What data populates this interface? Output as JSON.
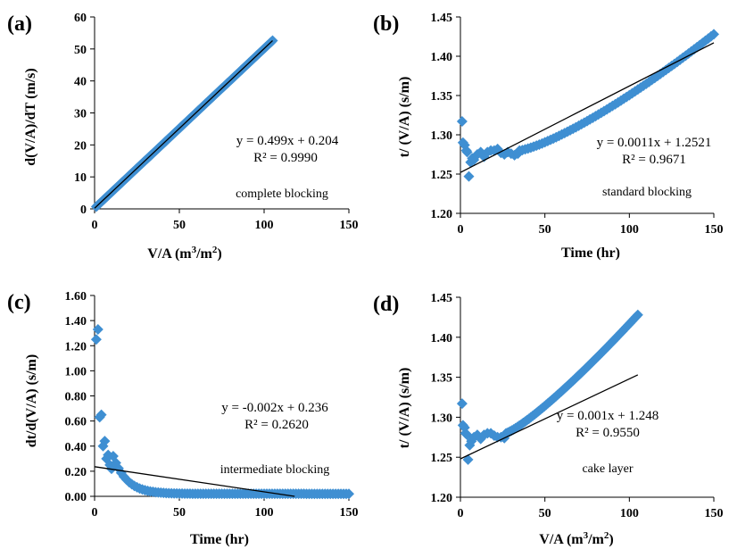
{
  "figure": {
    "panels": [
      {
        "letter": "(a)",
        "ylabel": "d(V/A)/dT (m/s)",
        "xlabel": "V/A (m³/m²)",
        "xlabel_main": "V/A (m",
        "xlabel_sup1": "3",
        "xlabel_mid": "/m",
        "xlabel_sup2": "2",
        "xlabel_end": ")",
        "equation": "y = 0.499x + 0.204",
        "r2": "R² = 0.9990",
        "note": "complete blocking",
        "xticks": [
          "0",
          "50",
          "100",
          "150"
        ],
        "yticks": [
          "0",
          "10",
          "20",
          "30",
          "40",
          "50",
          "60"
        ]
      },
      {
        "letter": "(b)",
        "ylabel": "t/ (V/A) (s/m)",
        "xlabel": "Time (hr)",
        "equation": "y = 0.0011x + 1.2521",
        "r2": "R² = 0.9671",
        "note": "standard blocking",
        "xticks": [
          "0",
          "50",
          "100",
          "150"
        ],
        "yticks": [
          "1.20",
          "1.25",
          "1.30",
          "1.35",
          "1.40",
          "1.45"
        ]
      },
      {
        "letter": "(c)",
        "ylabel": "dt/d(V/A) (s/m)",
        "xlabel": "Time (hr)",
        "equation": "y = -0.002x + 0.236",
        "r2": "R² = 0.2620",
        "note": "intermediate blocking",
        "xticks": [
          "0",
          "50",
          "100",
          "150"
        ],
        "yticks": [
          "0.00",
          "0.20",
          "0.40",
          "0.60",
          "0.80",
          "1.00",
          "1.20",
          "1.40",
          "1.60"
        ]
      },
      {
        "letter": "(d)",
        "ylabel": "t/ (V/A) (s/m)",
        "xlabel": "V/A (m³/m²)",
        "xlabel_main": "V/A (m",
        "xlabel_sup1": "3",
        "xlabel_mid": "/m",
        "xlabel_sup2": "2",
        "xlabel_end": ")",
        "equation": "y = 0.001x + 1.248",
        "r2": "R² = 0.9550",
        "note": "cake layer",
        "xticks": [
          "0",
          "50",
          "100",
          "150"
        ],
        "yticks": [
          "1.20",
          "1.25",
          "1.30",
          "1.35",
          "1.40",
          "1.45"
        ]
      }
    ]
  },
  "chart_data": [
    {
      "type": "scatter",
      "panel": "(a)",
      "xlabel": "V/A (m³/m²)",
      "ylabel": "d(V/A)/dT (m/s)",
      "xlim": [
        0,
        150
      ],
      "ylim": [
        0,
        60
      ],
      "marker_color": "#3F8FD2",
      "points": {
        "x_start": 1,
        "x_end": 105,
        "count": 150,
        "slope": 0.499,
        "intercept": 0.204
      },
      "trendline": {
        "slope": 0.499,
        "intercept": 0.204,
        "x_range": [
          0,
          105
        ],
        "r2": 0.999
      },
      "annotation": "complete blocking"
    },
    {
      "type": "scatter",
      "panel": "(b)",
      "xlabel": "Time (hr)",
      "ylabel": "t/ (V/A) (s/m)",
      "xlim": [
        0,
        150
      ],
      "ylim": [
        1.2,
        1.45
      ],
      "marker_color": "#3F8FD2",
      "points_explicit": [
        [
          1,
          1.317
        ],
        [
          1.5,
          1.29
        ],
        [
          2.5,
          1.287
        ],
        [
          3.5,
          1.28
        ],
        [
          4,
          1.278
        ],
        [
          5,
          1.247
        ],
        [
          6,
          1.265
        ],
        [
          7,
          1.27
        ],
        [
          8,
          1.268
        ],
        [
          10,
          1.275
        ],
        [
          12,
          1.278
        ],
        [
          14,
          1.272
        ],
        [
          16,
          1.278
        ],
        [
          18,
          1.28
        ],
        [
          20,
          1.28
        ],
        [
          22,
          1.282
        ],
        [
          24,
          1.277
        ],
        [
          26,
          1.275
        ],
        [
          28,
          1.278
        ],
        [
          30,
          1.276
        ],
        [
          32,
          1.274
        ],
        [
          34,
          1.276
        ]
      ],
      "points_curve": {
        "x_start": 35,
        "x_end": 150,
        "count": 70,
        "y_start": 1.28,
        "y_end": 1.428,
        "exponent": 1.3
      },
      "trendline": {
        "slope": 0.0011,
        "intercept": 1.2521,
        "x_range": [
          0,
          150
        ],
        "r2": 0.9671
      },
      "annotation": "standard blocking"
    },
    {
      "type": "scatter",
      "panel": "(c)",
      "xlabel": "Time (hr)",
      "ylabel": "dt/d(V/A) (s/m)",
      "xlim": [
        0,
        150
      ],
      "ylim": [
        0,
        1.6
      ],
      "marker_color": "#3F8FD2",
      "points_explicit": [
        [
          1,
          1.25
        ],
        [
          2,
          1.33
        ],
        [
          3,
          0.63
        ],
        [
          4,
          0.65
        ],
        [
          5,
          0.4
        ],
        [
          6,
          0.44
        ],
        [
          7,
          0.3
        ],
        [
          8,
          0.33
        ],
        [
          9,
          0.25
        ],
        [
          10,
          0.22
        ]
      ],
      "points_decay": {
        "x_start": 11,
        "x_end": 150,
        "count": 90,
        "tau": 8,
        "floor": 0.02,
        "amplitude": 0.3
      },
      "trendline": {
        "slope": -0.002,
        "intercept": 0.236,
        "x_range": [
          0,
          118
        ],
        "r2": 0.262
      },
      "annotation": "intermediate blocking"
    },
    {
      "type": "scatter",
      "panel": "(d)",
      "xlabel": "V/A (m³/m²)",
      "ylabel": "t/ (V/A) (s/m)",
      "xlim": [
        0,
        150
      ],
      "ylim": [
        1.2,
        1.45
      ],
      "marker_color": "#3F8FD2",
      "points_explicit": [
        [
          1,
          1.317
        ],
        [
          1.5,
          1.29
        ],
        [
          2.5,
          1.287
        ],
        [
          3,
          1.28
        ],
        [
          4,
          1.278
        ],
        [
          4.5,
          1.247
        ],
        [
          5.5,
          1.265
        ],
        [
          6.5,
          1.27
        ],
        [
          8,
          1.275
        ],
        [
          10,
          1.278
        ],
        [
          12,
          1.273
        ],
        [
          14,
          1.278
        ],
        [
          16,
          1.28
        ],
        [
          18,
          1.28
        ],
        [
          20,
          1.277
        ],
        [
          22,
          1.275
        ],
        [
          24,
          1.275
        ],
        [
          26,
          1.274
        ]
      ],
      "points_curve": {
        "x_start": 27,
        "x_end": 105,
        "count": 70,
        "y_start": 1.28,
        "y_end": 1.428,
        "exponent": 1.2
      },
      "trendline": {
        "slope": 0.001,
        "intercept": 1.248,
        "x_range": [
          0,
          105
        ],
        "r2": 0.955
      },
      "annotation": "cake layer"
    }
  ]
}
